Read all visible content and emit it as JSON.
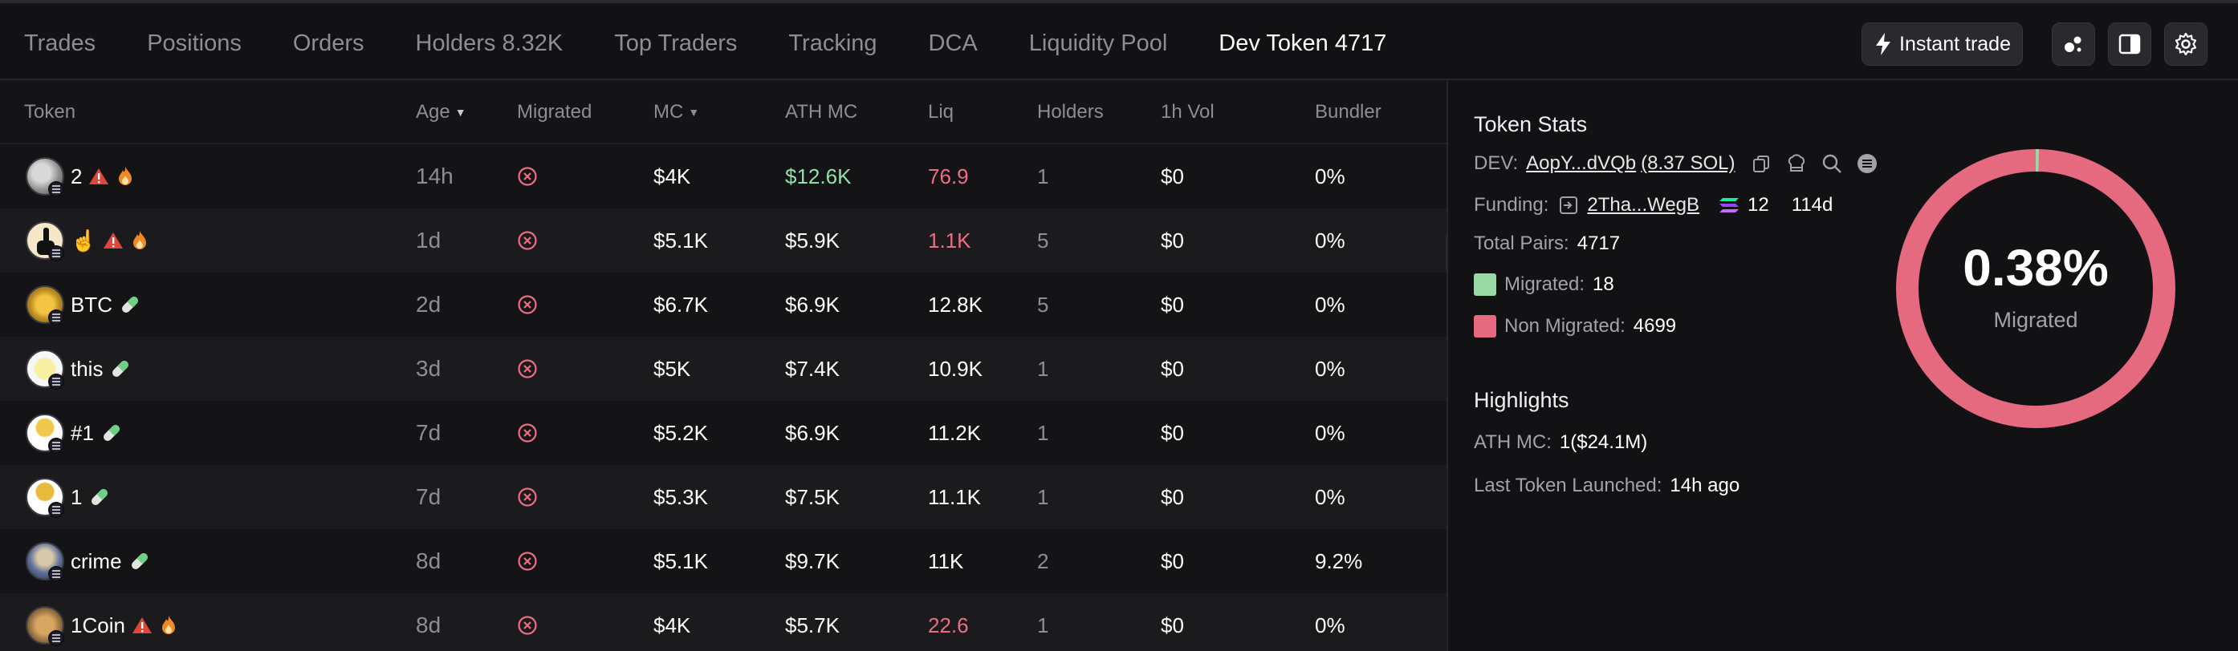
{
  "tabs": [
    {
      "label": "Trades"
    },
    {
      "label": "Positions"
    },
    {
      "label": "Orders"
    },
    {
      "label": "Holders 8.32K"
    },
    {
      "label": "Top Traders"
    },
    {
      "label": "Tracking"
    },
    {
      "label": "DCA"
    },
    {
      "label": "Liquidity Pool"
    },
    {
      "label": "Dev Token 4717",
      "active": true
    }
  ],
  "actions": {
    "instant_trade": "Instant trade"
  },
  "table": {
    "headers": {
      "token": "Token",
      "age": "Age",
      "migrated": "Migrated",
      "mc": "MC",
      "ath_mc": "ATH MC",
      "liq": "Liq",
      "holders": "Holders",
      "vol": "1h Vol",
      "bundler": "Bundler"
    },
    "rows": [
      {
        "name": "2",
        "age": "14h",
        "mc": "$4K",
        "ath": "$12.6K",
        "liq": "76.9",
        "holders": "1",
        "vol": "$0",
        "bundler": "0%"
      },
      {
        "name": "☝️",
        "age": "1d",
        "mc": "$5.1K",
        "ath": "$5.9K",
        "liq": "1.1K",
        "holders": "5",
        "vol": "$0",
        "bundler": "0%"
      },
      {
        "name": "BTC",
        "age": "2d",
        "mc": "$6.7K",
        "ath": "$6.9K",
        "liq": "12.8K",
        "holders": "5",
        "vol": "$0",
        "bundler": "0%"
      },
      {
        "name": "this",
        "age": "3d",
        "mc": "$5K",
        "ath": "$7.4K",
        "liq": "10.9K",
        "holders": "1",
        "vol": "$0",
        "bundler": "0%"
      },
      {
        "name": "#1",
        "age": "7d",
        "mc": "$5.2K",
        "ath": "$6.9K",
        "liq": "11.2K",
        "holders": "1",
        "vol": "$0",
        "bundler": "0%"
      },
      {
        "name": "1",
        "age": "7d",
        "mc": "$5.3K",
        "ath": "$7.5K",
        "liq": "11.1K",
        "holders": "1",
        "vol": "$0",
        "bundler": "0%"
      },
      {
        "name": "crime",
        "age": "8d",
        "mc": "$5.1K",
        "ath": "$9.7K",
        "liq": "11K",
        "holders": "2",
        "vol": "$0",
        "bundler": "9.2%"
      },
      {
        "name": "1Coin",
        "age": "8d",
        "mc": "$4K",
        "ath": "$5.7K",
        "liq": "22.6",
        "holders": "1",
        "vol": "$0",
        "bundler": "0%"
      }
    ]
  },
  "stats": {
    "title": "Token Stats",
    "dev_label": "DEV:",
    "dev_address": "AopY...dVQb",
    "dev_sol": "(8.37 SOL)",
    "funding_label": "Funding:",
    "funding_address": "2Tha...WegB",
    "funding_amount": "12",
    "funding_age": "114d",
    "total_pairs_label": "Total Pairs:",
    "total_pairs": "4717",
    "migrated_label": "Migrated:",
    "migrated": "18",
    "non_migrated_label": "Non Migrated:",
    "non_migrated": "4699",
    "colors": {
      "migrated": "#98d9a6",
      "non_migrated": "#e5697f"
    }
  },
  "donut": {
    "percent_text": "0.38%",
    "label": "Migrated",
    "migrated_fraction": 0.0038
  },
  "highlights": {
    "title": "Highlights",
    "ath_label": "ATH MC:",
    "ath_value": "1($24.1M)",
    "last_label": "Last Token Launched:",
    "last_value": "14h ago"
  }
}
